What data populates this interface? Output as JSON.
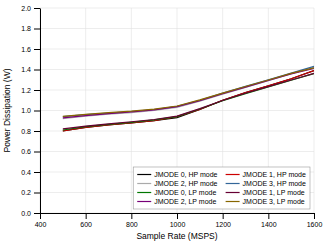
{
  "chart_data": {
    "type": "line",
    "xlabel": "Sample Rate (MSPS)",
    "ylabel": "Power Dissipation (W)",
    "x": [
      500,
      600,
      700,
      800,
      900,
      1000,
      1100,
      1200,
      1300,
      1400,
      1500,
      1600
    ],
    "series": [
      {
        "name": "JMODE 0, HP mode",
        "color": "#000000",
        "values": [
          0.8,
          0.836,
          0.86,
          0.88,
          0.9,
          0.93,
          1.01,
          1.1,
          1.175,
          1.24,
          1.31,
          1.39
        ]
      },
      {
        "name": "JMODE 1, HP mode",
        "color": "#cc0000",
        "values": [
          0.8,
          0.836,
          0.86,
          0.88,
          0.9,
          0.94,
          1.01,
          1.1,
          1.175,
          1.24,
          1.31,
          1.39
        ]
      },
      {
        "name": "JMODE 2, HP mode",
        "color": "#aaaaaa",
        "values": [
          0.92,
          0.945,
          0.965,
          0.98,
          1.0,
          1.03,
          1.09,
          1.16,
          1.225,
          1.29,
          1.36,
          1.42
        ]
      },
      {
        "name": "JMODE 3, HP mode",
        "color": "#336699",
        "values": [
          0.94,
          0.96,
          0.975,
          0.99,
          1.01,
          1.04,
          1.1,
          1.17,
          1.235,
          1.3,
          1.365,
          1.43
        ]
      },
      {
        "name": "JMODE 0, LP mode",
        "color": "#007700",
        "values": [
          0.81,
          0.842,
          0.865,
          0.885,
          0.908,
          0.94,
          1.015,
          1.095,
          1.165,
          1.23,
          1.295,
          1.36
        ]
      },
      {
        "name": "JMODE 1, LP mode",
        "color": "#660033",
        "values": [
          0.82,
          0.847,
          0.87,
          0.89,
          0.912,
          0.945,
          1.018,
          1.098,
          1.168,
          1.233,
          1.298,
          1.363
        ]
      },
      {
        "name": "JMODE 2, LP mode",
        "color": "#770077",
        "values": [
          0.928,
          0.95,
          0.97,
          0.987,
          1.007,
          1.037,
          1.095,
          1.163,
          1.228,
          1.293,
          1.358,
          1.41
        ]
      },
      {
        "name": "JMODE 3, LP mode",
        "color": "#886600",
        "values": [
          0.942,
          0.963,
          0.979,
          0.994,
          1.014,
          1.044,
          1.103,
          1.17,
          1.234,
          1.298,
          1.362,
          1.416
        ]
      }
    ],
    "xlim": [
      400,
      1600
    ],
    "ylim": [
      0,
      2
    ],
    "xticks": [
      400,
      600,
      800,
      1000,
      1200,
      1400,
      1600
    ],
    "yticks": [
      {
        "value": 0,
        "label": "0.0"
      },
      0.2,
      0.4,
      0.6,
      0.8,
      {
        "value": 1.0,
        "label": "1.0"
      },
      1.2,
      1.4,
      1.6,
      1.8,
      {
        "value": 2.0,
        "label": "2.0"
      }
    ],
    "grid": true,
    "legend": "lower right"
  }
}
